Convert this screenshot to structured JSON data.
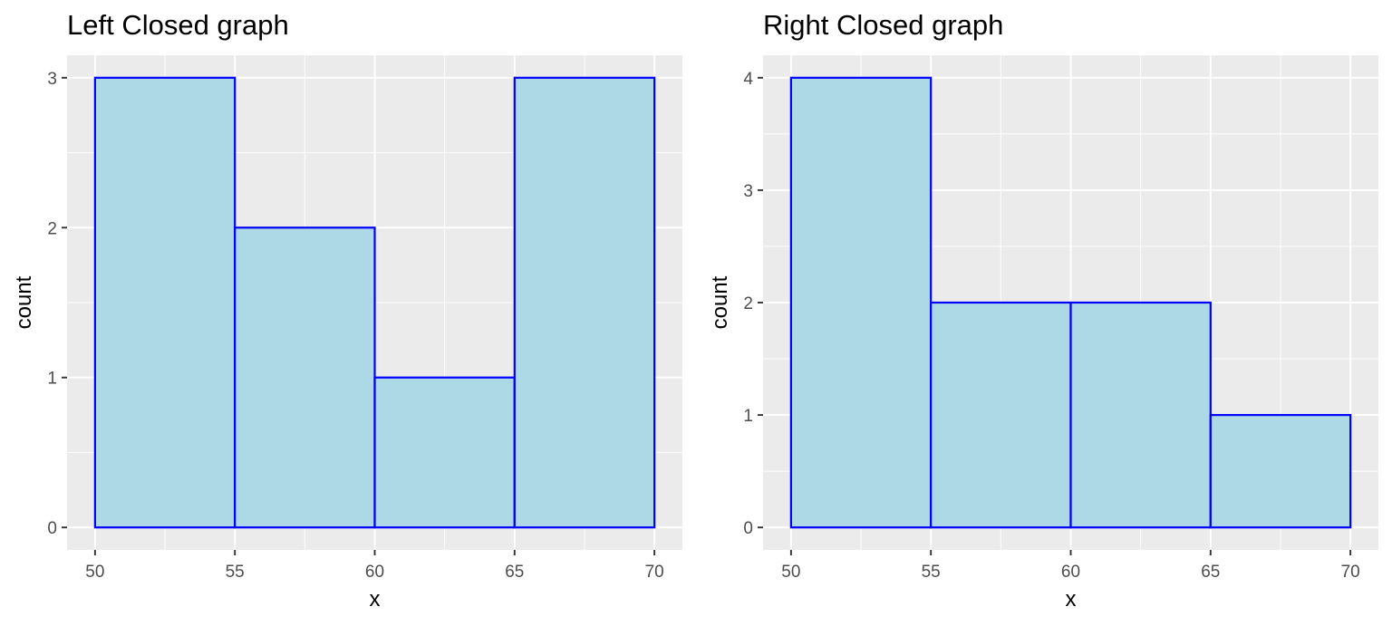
{
  "chart_data": [
    {
      "type": "bar",
      "subtype": "histogram",
      "title": "Left Closed graph",
      "xlabel": "x",
      "ylabel": "count",
      "bins": [
        [
          50,
          55
        ],
        [
          55,
          60
        ],
        [
          60,
          65
        ],
        [
          65,
          70
        ]
      ],
      "values": [
        3,
        2,
        1,
        3
      ],
      "xlim": [
        49,
        71
      ],
      "ylim": [
        -0.15,
        3.15
      ],
      "xticks": [
        50,
        55,
        60,
        65,
        70
      ],
      "yticks": [
        0,
        1,
        2,
        3
      ],
      "grid": true,
      "fill_color": "#add8e6",
      "edge_color": "#0000ff",
      "background_color": "#ebebeb"
    },
    {
      "type": "bar",
      "subtype": "histogram",
      "title": "Right Closed graph",
      "xlabel": "x",
      "ylabel": "count",
      "bins": [
        [
          50,
          55
        ],
        [
          55,
          60
        ],
        [
          60,
          65
        ],
        [
          65,
          70
        ]
      ],
      "values": [
        4,
        2,
        2,
        1
      ],
      "xlim": [
        49,
        71
      ],
      "ylim": [
        -0.2,
        4.2
      ],
      "xticks": [
        50,
        55,
        60,
        65,
        70
      ],
      "yticks": [
        0,
        1,
        2,
        3,
        4
      ],
      "grid": true,
      "fill_color": "#add8e6",
      "edge_color": "#0000ff",
      "background_color": "#ebebeb"
    }
  ]
}
